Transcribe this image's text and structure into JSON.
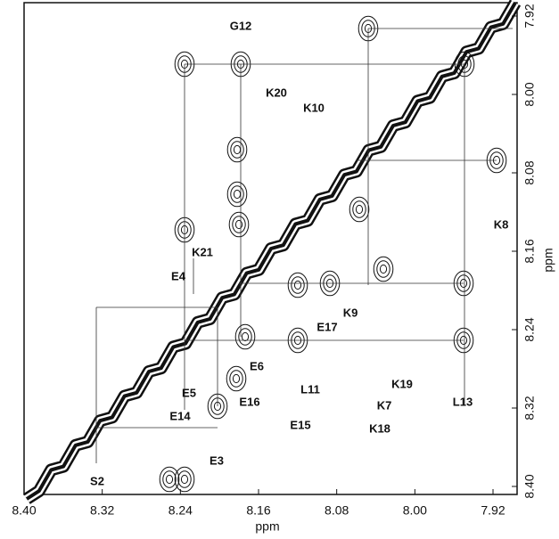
{
  "chart_data": {
    "type": "nmr-2d",
    "x_label": "ppm",
    "y_label": "ppm",
    "xlim": [
      8.4,
      7.92
    ],
    "xticks": [
      {
        "value": 8.4,
        "label": "8.40"
      },
      8.32,
      8.24,
      8.16,
      8.08,
      {
        "value": 8.0,
        "label": "8.00"
      },
      7.92
    ],
    "ylim": [
      7.92,
      8.4
    ],
    "yticks": [
      7.92,
      {
        "value": 8.0,
        "label": "8.00"
      },
      8.08,
      8.16,
      8.24,
      8.32,
      {
        "value": 8.4,
        "label": "8.40"
      }
    ],
    "annotations": [
      "G12",
      "K20",
      "K10",
      "K8",
      "K21",
      "E4",
      "E17",
      "K9",
      "E6",
      "E5",
      "E14",
      "E16",
      "L11",
      "E15",
      "K19",
      "K7",
      "K18",
      "L13",
      "E3",
      "S2"
    ]
  }
}
